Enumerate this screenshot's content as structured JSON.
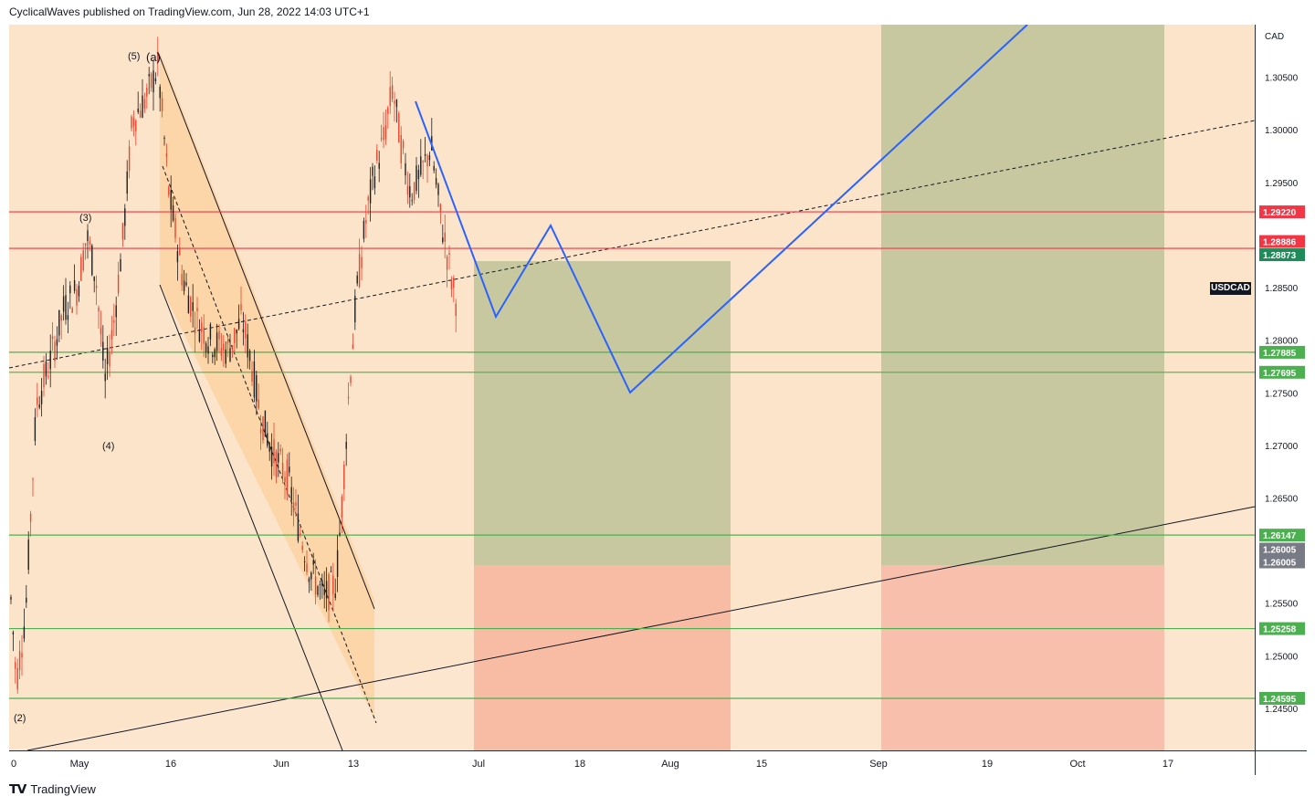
{
  "header": {
    "title": "CyclicalWaves published on TradingView.com, Jun 28, 2022 14:03 UTC+1"
  },
  "footer": {
    "brand": "TradingView",
    "logo_icon": "tradingview-logo-icon"
  },
  "chart_data": {
    "type": "candlestick",
    "symbol": "USDCAD",
    "currency": "CAD",
    "price_ticks": [
      "1.30500",
      "1.30000",
      "1.29500",
      "1.28500",
      "1.28000",
      "1.27500",
      "1.27000",
      "1.26500",
      "1.25500",
      "1.25000",
      "1.24500"
    ],
    "time_ticks": [
      "0",
      "May",
      "16",
      "Jun",
      "13",
      "Jul",
      "18",
      "Aug",
      "15",
      "Sep",
      "19",
      "Oct",
      "17"
    ],
    "ylim": [
      1.241,
      1.31
    ],
    "grid": false,
    "levels": [
      {
        "label": "1.29220",
        "price": 1.2922,
        "color": "#f23645",
        "line": true
      },
      {
        "label": "1.28886",
        "price": 1.28886,
        "color": "#f23645",
        "line": false
      },
      {
        "label": "1.28873",
        "price": 1.28873,
        "color": "#1e8c5a",
        "line": true
      },
      {
        "label": "1.27885",
        "price": 1.27885,
        "color": "#4caf50",
        "line": true
      },
      {
        "label": "1.27695",
        "price": 1.27695,
        "color": "#4caf50",
        "line": true
      },
      {
        "label": "1.26147",
        "price": 1.26147,
        "color": "#4caf50",
        "line": true
      },
      {
        "label": "1.26005",
        "price": 1.26005,
        "color": "#787b86",
        "line": false
      },
      {
        "label": "1.26005",
        "price": 1.26005,
        "color": "#787b86",
        "line": false
      },
      {
        "label": "1.25258",
        "price": 1.25258,
        "color": "#4caf50",
        "line": true
      },
      {
        "label": "1.24595",
        "price": 1.24595,
        "color": "#4caf50",
        "line": true
      }
    ],
    "symbol_label": {
      "text": "USDCAD",
      "price": 1.2849
    },
    "wave_labels": [
      "(5)",
      "(a)",
      "(3)",
      "(4)",
      "(2)"
    ],
    "colors": {
      "background": "#fce4ca",
      "up_candle": "#1e1e1e",
      "down_candle": "#e8442e",
      "projection": "#2962ff",
      "target_zone": "#c8c8a0",
      "stop_zone": "#f8b4a0",
      "channel": "#fcc98e"
    }
  }
}
